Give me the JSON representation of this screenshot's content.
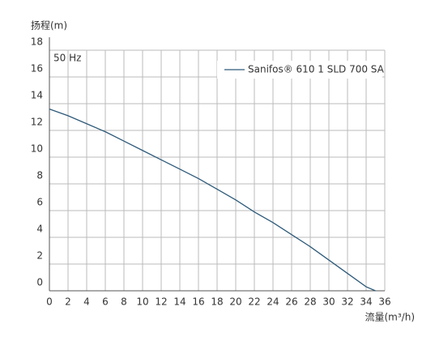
{
  "chart_data": {
    "type": "line",
    "y_label": "扬程(m)",
    "x_label": "流量(m³/h)",
    "annotation": "50 Hz",
    "x": [
      0,
      2,
      4,
      6,
      8,
      10,
      12,
      14,
      16,
      18,
      20,
      22,
      24,
      26,
      28,
      30,
      32,
      34,
      35
    ],
    "series": [
      {
        "name": "Sanifos® 610 1 SLD 700 SA",
        "color": "#2e5a7a",
        "values": [
          13.6,
          13.1,
          12.5,
          11.9,
          11.2,
          10.5,
          9.8,
          9.1,
          8.4,
          7.6,
          6.8,
          5.9,
          5.1,
          4.2,
          3.3,
          2.3,
          1.3,
          0.3,
          0
        ]
      }
    ],
    "xlim": [
      0,
      36
    ],
    "ylim": [
      0,
      18
    ],
    "xticks": [
      0,
      2,
      4,
      6,
      8,
      10,
      12,
      14,
      16,
      18,
      20,
      22,
      24,
      26,
      28,
      30,
      32,
      34,
      36
    ],
    "yticks": [
      0,
      2,
      4,
      6,
      8,
      10,
      12,
      14,
      16,
      18
    ],
    "grid": true,
    "legend": "top-right"
  }
}
